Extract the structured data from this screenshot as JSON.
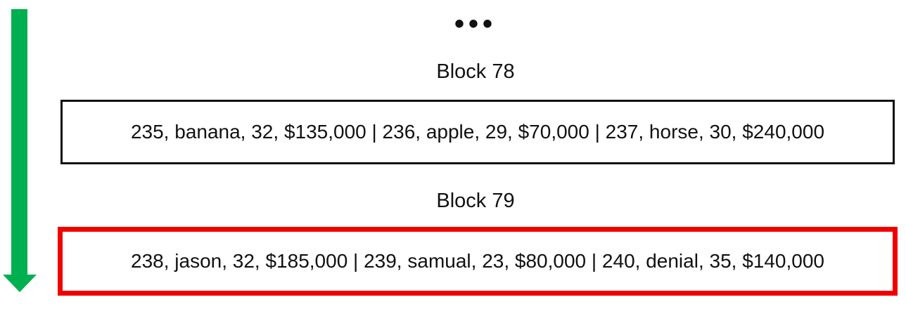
{
  "ellipsis": "•••",
  "colors": {
    "arrow": "#00b050",
    "highlight_border": "#f10000",
    "normal_border": "#111111"
  },
  "blocks": [
    {
      "title": "Block 78",
      "records": "235, banana, 32, $135,000 | 236, apple, 29, $70,000 | 237, horse, 30, $240,000",
      "highlighted": false
    },
    {
      "title": "Block 79",
      "records": "238, jason, 32, $185,000 | 239, samual, 23, $80,000 | 240, denial, 35, $140,000",
      "highlighted": true
    }
  ]
}
